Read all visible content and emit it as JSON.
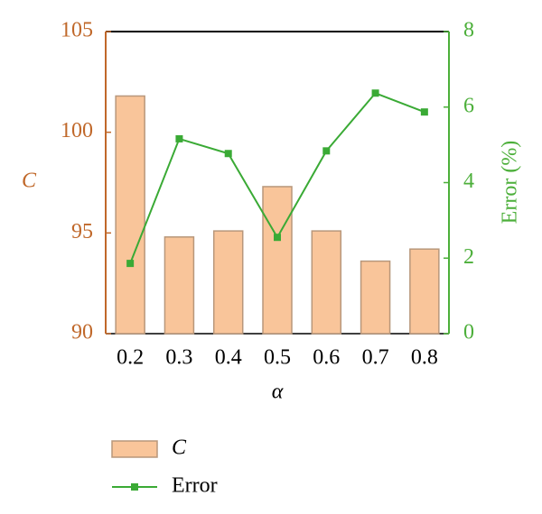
{
  "chart_data": {
    "type": "bar",
    "x_label": "α",
    "y_label": "C",
    "y2_label": "Error (%)",
    "categories": [
      "0.2",
      "0.3",
      "0.4",
      "0.5",
      "0.6",
      "0.7",
      "0.8"
    ],
    "series": [
      {
        "name": "C",
        "type": "bar",
        "color": "#f9c59a",
        "values": [
          101.8,
          94.8,
          95.1,
          97.3,
          95.1,
          93.6,
          94.2
        ]
      },
      {
        "name": "Error",
        "type": "line",
        "axis": "y2",
        "color": "#3aaa35",
        "values": [
          1.86,
          5.16,
          4.77,
          2.55,
          4.84,
          6.37,
          5.87
        ]
      }
    ],
    "ylim": [
      90,
      105
    ],
    "yticks": [
      90,
      95,
      100,
      105
    ],
    "y_color": "#c0682a",
    "y2lim": [
      0,
      8
    ],
    "y2ticks": [
      0,
      2,
      4,
      6,
      8
    ],
    "y2_color": "#4caf3a",
    "legend": "bottom"
  }
}
